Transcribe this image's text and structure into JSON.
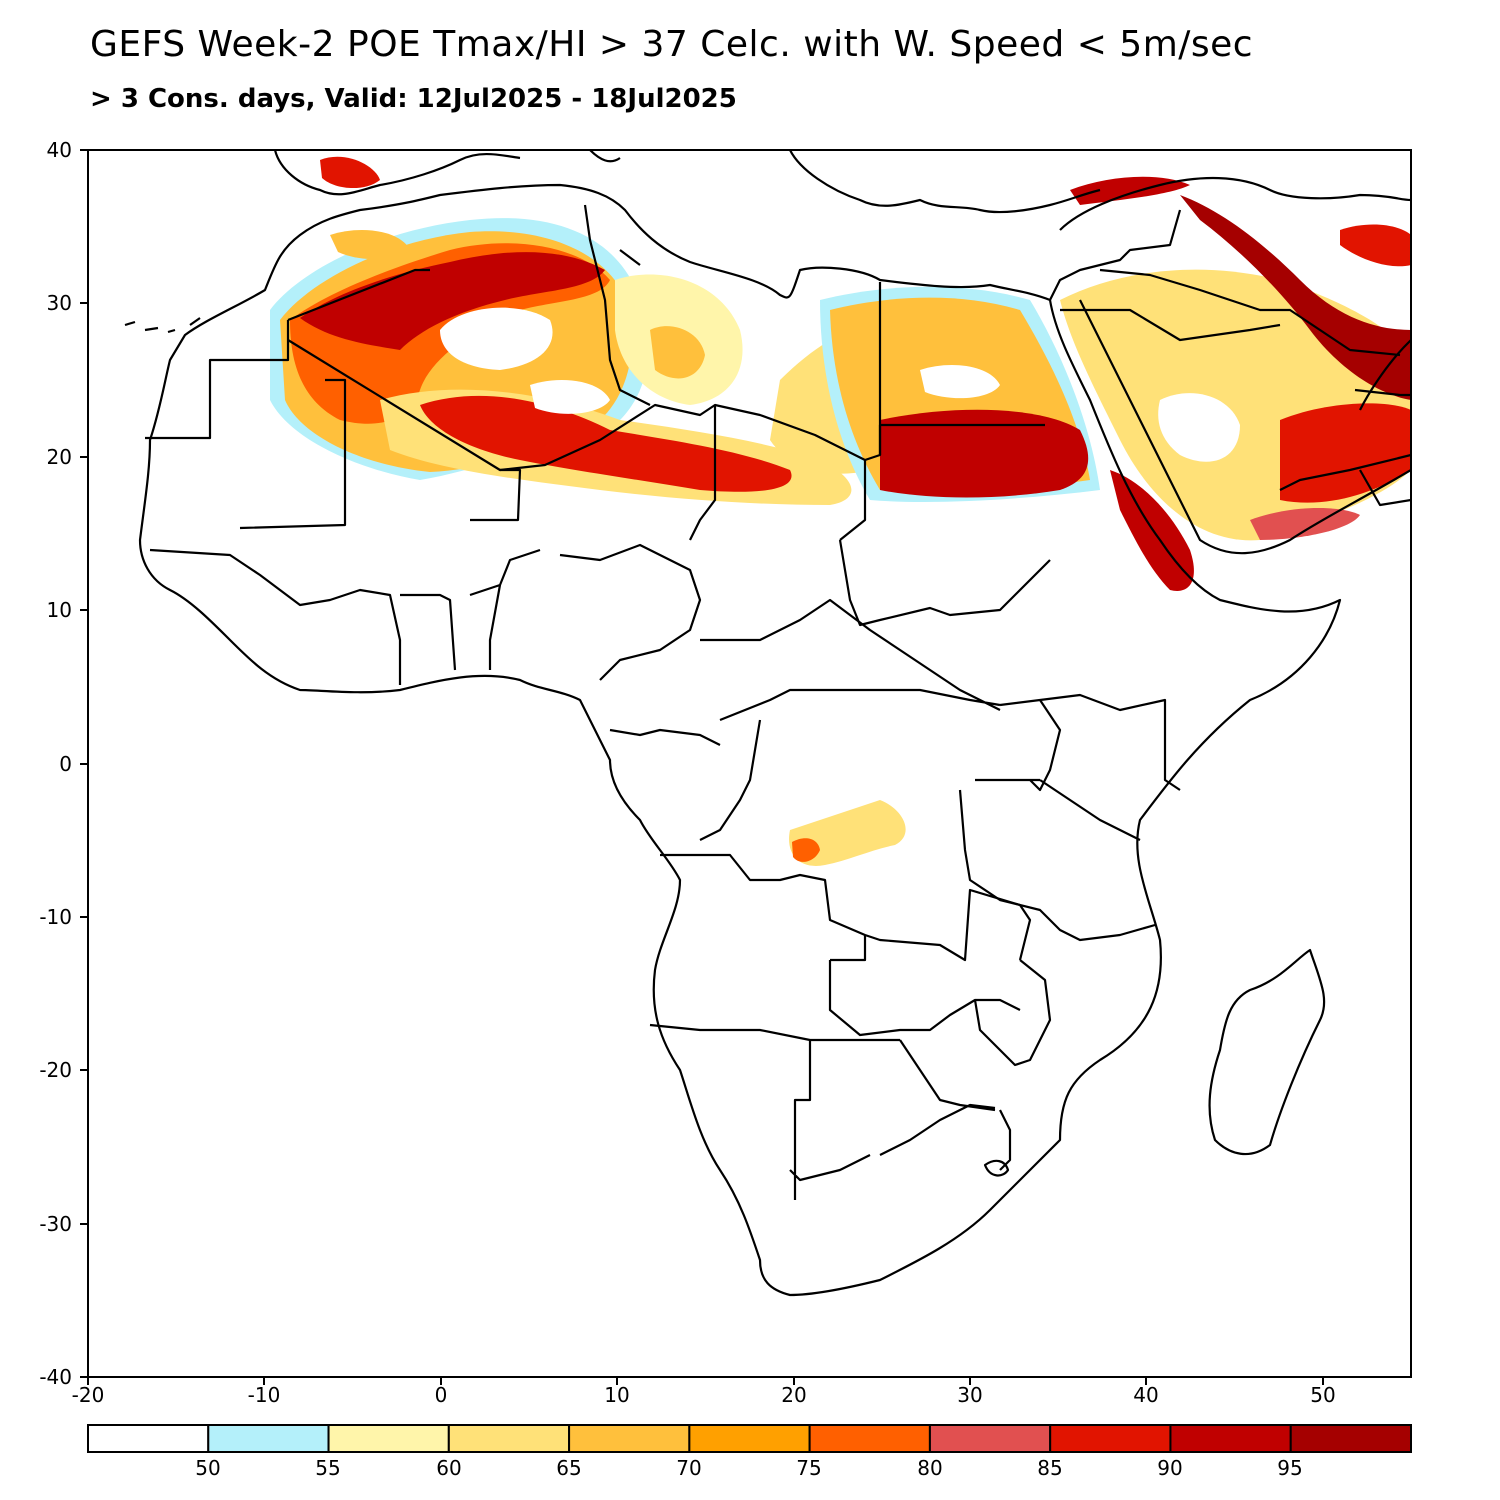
{
  "title": "GEFS Week-2 POE Tmax/HI > 37 Celc. with W. Speed < 5m/sec",
  "subtitle": "> 3 Cons. days, Valid: 12Jul2025 - 18Jul2025",
  "map": {
    "lon_range": [
      -20,
      55
    ],
    "lat_range": [
      -40,
      40
    ],
    "x_ticks": [
      "-20",
      "-10",
      "0",
      "10",
      "20",
      "30",
      "40",
      "50"
    ],
    "y_ticks": [
      "40",
      "30",
      "20",
      "10",
      "0",
      "-10",
      "-20",
      "-30",
      "-40"
    ],
    "regions": [
      "Sahara (Mauritania, Mali, Algeria, Niger)",
      "Libya / Egypt / Sudan",
      "Arabian Peninsula",
      "Iraq / Iran Gulf coast",
      "Red Sea / Eritrea coast",
      "Central DR Congo patch"
    ]
  },
  "colorbar": {
    "labels": [
      "50",
      "55",
      "60",
      "65",
      "70",
      "75",
      "80",
      "85",
      "90",
      "95"
    ],
    "colors": [
      "#ffffff",
      "#b4f0fa",
      "#fff5aa",
      "#ffe178",
      "#ffc03c",
      "#ffa000",
      "#ff6000",
      "#e15050",
      "#e11400",
      "#c00000",
      "#a50000"
    ]
  }
}
